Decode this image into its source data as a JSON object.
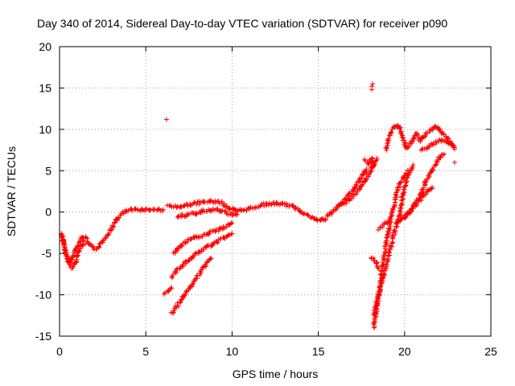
{
  "chart_data": {
    "type": "scatter",
    "title": "Day 340 of 2014, Sidereal Day-to-day VTEC variation (SDTVAR) for receiver p090",
    "xlabel": "GPS time / hours",
    "ylabel": "SDTVAR / TECUs",
    "xlim": [
      0,
      25
    ],
    "ylim": [
      -15,
      20
    ],
    "xticks": [
      "0",
      "5",
      "10",
      "15",
      "20",
      "25"
    ],
    "yticks": [
      "-15",
      "-10",
      "-5",
      "0",
      "5",
      "10",
      "15",
      "20"
    ],
    "grid": true,
    "marker": "+",
    "color": "#ff0000",
    "series": [
      {
        "name": "",
        "segments": [
          [
            [
              0.2,
              -3.0
            ],
            [
              0.3,
              -4.5
            ],
            [
              0.5,
              -5.8
            ],
            [
              0.7,
              -6.8
            ],
            [
              0.9,
              -6.2
            ],
            [
              1.1,
              -4.8
            ],
            [
              1.4,
              -3.6
            ],
            [
              1.7,
              -3.8
            ],
            [
              2.0,
              -4.5
            ],
            [
              2.3,
              -4.2
            ],
            [
              2.6,
              -3.2
            ],
            [
              3.0,
              -2.0
            ],
            [
              3.3,
              -1.0
            ],
            [
              3.6,
              -0.2
            ],
            [
              4.0,
              0.2
            ],
            [
              4.5,
              0.3
            ],
            [
              5.0,
              0.3
            ],
            [
              5.5,
              0.3
            ],
            [
              6.0,
              0.3
            ]
          ],
          [
            [
              0.1,
              -2.6
            ],
            [
              0.25,
              -3.8
            ],
            [
              0.4,
              -5.2
            ],
            [
              0.6,
              -6.0
            ],
            [
              0.8,
              -5.5
            ],
            [
              1.0,
              -4.3
            ],
            [
              1.3,
              -3.0
            ],
            [
              1.6,
              -3.2
            ]
          ],
          [
            [
              6.3,
              0.8
            ],
            [
              6.8,
              0.6
            ],
            [
              7.3,
              0.8
            ],
            [
              7.8,
              1.0
            ],
            [
              8.3,
              1.2
            ],
            [
              8.8,
              1.3
            ],
            [
              9.3,
              1.2
            ],
            [
              9.8,
              0.5
            ],
            [
              10.3,
              0.1
            ],
            [
              10.8,
              0.3
            ],
            [
              11.3,
              0.6
            ],
            [
              11.8,
              0.9
            ],
            [
              12.3,
              1.0
            ],
            [
              12.8,
              1.0
            ],
            [
              13.3,
              0.8
            ],
            [
              13.8,
              0.4
            ],
            [
              14.3,
              -0.3
            ],
            [
              14.8,
              -0.9
            ],
            [
              15.1,
              -1.0
            ],
            [
              15.4,
              -0.8
            ],
            [
              15.7,
              -0.2
            ],
            [
              16.0,
              0.3
            ],
            [
              16.3,
              1.0
            ],
            [
              16.6,
              1.8
            ],
            [
              17.0,
              2.5
            ],
            [
              17.3,
              3.6
            ],
            [
              17.6,
              4.6
            ],
            [
              17.8,
              5.2
            ]
          ],
          [
            [
              6.8,
              -0.5
            ],
            [
              7.3,
              -0.4
            ],
            [
              7.8,
              -0.2
            ],
            [
              8.3,
              0.1
            ],
            [
              8.8,
              0.3
            ],
            [
              9.3,
              0.2
            ],
            [
              9.8,
              -0.2
            ],
            [
              10.3,
              -0.3
            ]
          ],
          [
            [
              6.6,
              -5.0
            ],
            [
              7.0,
              -4.1
            ],
            [
              7.5,
              -3.4
            ],
            [
              8.0,
              -3.0
            ],
            [
              8.5,
              -2.7
            ],
            [
              9.0,
              -2.3
            ],
            [
              9.5,
              -1.9
            ],
            [
              10.0,
              -1.3
            ]
          ],
          [
            [
              6.5,
              -7.8
            ],
            [
              7.0,
              -6.6
            ],
            [
              7.5,
              -5.8
            ],
            [
              8.0,
              -5.0
            ],
            [
              8.5,
              -4.3
            ],
            [
              9.0,
              -3.7
            ],
            [
              9.5,
              -3.2
            ],
            [
              10.0,
              -2.6
            ]
          ],
          [
            [
              6.5,
              -12.3
            ],
            [
              7.0,
              -10.8
            ],
            [
              7.5,
              -9.3
            ],
            [
              8.0,
              -7.8
            ],
            [
              8.5,
              -6.2
            ],
            [
              8.8,
              -5.6
            ]
          ],
          [
            [
              6.1,
              -9.8
            ],
            [
              6.3,
              -9.5
            ],
            [
              6.5,
              -9.2
            ]
          ],
          [
            [
              16.3,
              0.8
            ],
            [
              16.8,
              1.5
            ],
            [
              17.3,
              2.5
            ],
            [
              17.8,
              4.0
            ],
            [
              18.0,
              5.0
            ],
            [
              18.2,
              5.8
            ],
            [
              18.4,
              6.5
            ]
          ],
          [
            [
              17.7,
              6.2
            ],
            [
              17.9,
              5.8
            ],
            [
              18.1,
              6.5
            ],
            [
              18.2,
              5.5
            ]
          ],
          [
            [
              18.1,
              -5.5
            ],
            [
              18.3,
              -6.0
            ],
            [
              18.5,
              -6.8
            ]
          ],
          [
            [
              18.2,
              -14.0
            ],
            [
              18.4,
              -11.5
            ],
            [
              18.6,
              -8.5
            ],
            [
              18.8,
              -5.5
            ],
            [
              19.0,
              -3.0
            ],
            [
              19.2,
              -1.0
            ],
            [
              19.4,
              1.0
            ],
            [
              19.6,
              2.7
            ],
            [
              19.9,
              4.0
            ],
            [
              20.2,
              5.0
            ]
          ],
          [
            [
              18.2,
              -12.5
            ],
            [
              18.5,
              -10.0
            ],
            [
              18.8,
              -7.5
            ],
            [
              19.1,
              -5.0
            ],
            [
              19.4,
              -2.5
            ],
            [
              19.7,
              -0.5
            ],
            [
              19.9,
              2.0
            ],
            [
              20.2,
              4.5
            ],
            [
              20.5,
              5.7
            ]
          ],
          [
            [
              18.5,
              -2.0
            ],
            [
              18.8,
              -1.5
            ],
            [
              19.1,
              -1.0
            ]
          ],
          [
            [
              19.5,
              -1.5
            ],
            [
              19.8,
              -0.8
            ],
            [
              20.1,
              -0.3
            ],
            [
              20.4,
              0.3
            ],
            [
              20.7,
              1.0
            ],
            [
              21.0,
              1.8
            ],
            [
              21.3,
              2.5
            ],
            [
              21.6,
              3.0
            ]
          ],
          [
            [
              20.0,
              -0.8
            ],
            [
              20.3,
              0.0
            ],
            [
              20.6,
              1.0
            ],
            [
              20.9,
              2.0
            ],
            [
              21.2,
              3.5
            ],
            [
              21.5,
              4.8
            ],
            [
              21.8,
              5.8
            ],
            [
              22.1,
              6.8
            ],
            [
              22.3,
              7.0
            ]
          ],
          [
            [
              18.9,
              7.5
            ],
            [
              19.1,
              9.0
            ],
            [
              19.3,
              10.0
            ],
            [
              19.5,
              10.5
            ],
            [
              19.7,
              10.3
            ],
            [
              19.9,
              9.0
            ],
            [
              20.1,
              7.6
            ],
            [
              20.4,
              8.5
            ],
            [
              20.7,
              9.5
            ],
            [
              20.9,
              8.6
            ],
            [
              21.1,
              9.2
            ],
            [
              21.4,
              9.8
            ],
            [
              21.7,
              10.2
            ],
            [
              21.9,
              10.4
            ],
            [
              22.1,
              9.8
            ],
            [
              22.4,
              9.0
            ],
            [
              22.7,
              8.3
            ],
            [
              22.9,
              7.6
            ]
          ],
          [
            [
              21.0,
              7.5
            ],
            [
              21.3,
              7.8
            ],
            [
              21.6,
              8.2
            ],
            [
              21.9,
              8.5
            ],
            [
              22.2,
              8.8
            ],
            [
              22.5,
              8.5
            ],
            [
              22.8,
              8.0
            ]
          ]
        ],
        "points": [
          [
            6.2,
            11.2
          ],
          [
            18.1,
            15.2
          ],
          [
            18.1,
            14.8
          ],
          [
            18.15,
            15.5
          ],
          [
            22.9,
            6.0
          ]
        ]
      }
    ]
  }
}
